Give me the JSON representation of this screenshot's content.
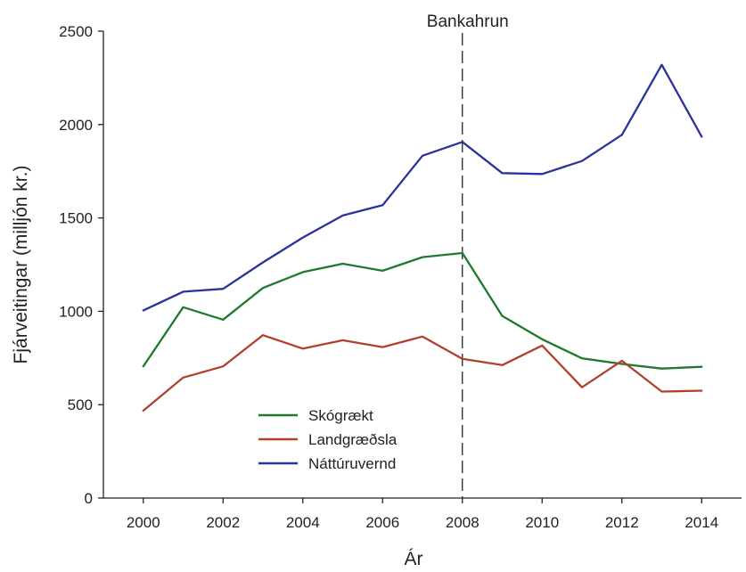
{
  "chart_data": {
    "type": "line",
    "title": "",
    "xlabel": "Ár",
    "ylabel": "Fjárveitingar (milljón kr.)",
    "xlim": [
      1999,
      2015
    ],
    "ylim": [
      0,
      2500
    ],
    "x_ticks": [
      2000,
      2002,
      2004,
      2006,
      2008,
      2010,
      2012,
      2014
    ],
    "y_ticks": [
      0,
      500,
      1000,
      1500,
      2000,
      2500
    ],
    "x": [
      2000,
      2001,
      2002,
      2003,
      2004,
      2005,
      2006,
      2007,
      2008,
      2009,
      2010,
      2011,
      2012,
      2013,
      2014
    ],
    "grid": false,
    "legend_position": "lower-left",
    "series": [
      {
        "name": "Skógrækt",
        "color": "#1f7a2e",
        "values": [
          705,
          1022,
          955,
          1125,
          1210,
          1255,
          1217,
          1290,
          1312,
          975,
          850,
          748,
          718,
          693,
          703
        ]
      },
      {
        "name": "Landgræðsla",
        "color": "#b0402f",
        "values": [
          468,
          645,
          705,
          872,
          800,
          845,
          808,
          865,
          745,
          712,
          817,
          593,
          735,
          570,
          575
        ]
      },
      {
        "name": "Náttúruvernd",
        "color": "#2a3399",
        "values": [
          1005,
          1105,
          1120,
          1262,
          1395,
          1513,
          1568,
          1833,
          1907,
          1740,
          1735,
          1805,
          1945,
          2320,
          1935
        ]
      }
    ],
    "annotations": [
      {
        "type": "vline",
        "x": 2008,
        "label": "Bankahrun",
        "color": "#222222"
      }
    ]
  }
}
